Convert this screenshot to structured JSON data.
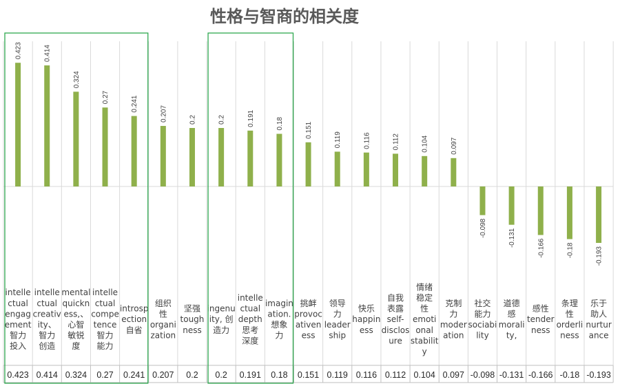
{
  "chart_data": {
    "type": "bar",
    "title": "性格与智商的相关度",
    "categories": [
      "intellectual engagement 智力投入",
      "intellectual creativity、智力创造",
      "mental quickness、心智敏锐度",
      "intellectual competence 智力能力",
      "introspection 自省",
      "组织性 organization",
      "坚强 toughness",
      "ingenuity, 创造力",
      "intellectual depth 思考深度",
      "imagination. 想象力",
      "挑衅 provocativeness",
      "领导力 leadership",
      "快乐 happiness",
      "自我表露 self-disclosure",
      "情绪稳定性 emotional stability",
      "克制力 moderation",
      "社交能力 sociability",
      "道德感 morality,",
      "感性 tenderness",
      "条理性 orderliness",
      "乐于助人 nurturance"
    ],
    "category_lines": [
      [
        "intelle",
        "ctual",
        "engag",
        "ement",
        "智力",
        "投入"
      ],
      [
        "intelle",
        "ctual",
        "creativ",
        "ity、",
        "智力",
        "创造"
      ],
      [
        "mental",
        "quickn",
        "ess,、",
        "心智",
        "敏锐",
        "度"
      ],
      [
        "intelle",
        "ctual",
        "compe",
        "tence",
        "智力",
        "能力"
      ],
      [
        "introsp",
        "ection",
        "自省"
      ],
      [
        "组织",
        "性",
        "organi",
        "zation"
      ],
      [
        "坚强",
        "tough",
        "ness"
      ],
      [
        "ingenu",
        "ity, 创",
        "造力"
      ],
      [
        "intelle",
        "ctual",
        "depth",
        "思考",
        "深度"
      ],
      [
        "imagin",
        "ation.",
        "想象",
        "力"
      ],
      [
        "挑衅",
        "provoc",
        "ativen",
        "ess"
      ],
      [
        "领导",
        "力",
        "leader",
        "ship"
      ],
      [
        "快乐",
        "happin",
        "ess"
      ],
      [
        "自我",
        "表露",
        "self-",
        "disclos",
        "ure"
      ],
      [
        "情绪",
        "稳定",
        "性",
        "emoti",
        "onal",
        "stabilit",
        "y"
      ],
      [
        "克制",
        "力",
        "moder",
        "ation"
      ],
      [
        "社交",
        "能力",
        "sociabi",
        "lity"
      ],
      [
        "道德",
        "感",
        "morali",
        "ty,"
      ],
      [
        "感性",
        "tender",
        "ness"
      ],
      [
        "条理",
        "性",
        "orderli",
        "ness"
      ],
      [
        "乐于",
        "助人",
        "nurtur",
        "ance"
      ]
    ],
    "values": [
      0.423,
      0.414,
      0.324,
      0.27,
      0.241,
      0.207,
      0.2,
      0.2,
      0.191,
      0.18,
      0.151,
      0.119,
      0.116,
      0.112,
      0.104,
      0.097,
      -0.098,
      -0.131,
      -0.166,
      -0.18,
      -0.193
    ],
    "value_labels": [
      "0.423",
      "0.414",
      "0.324",
      "0.27",
      "0.241",
      "0.207",
      "0.2",
      "0.2",
      "0.191",
      "0.18",
      "0.151",
      "0.119",
      "0.116",
      "0.112",
      "0.104",
      "0.097",
      "-0.098",
      "-0.131",
      "-0.166",
      "-0.18",
      "-0.193"
    ],
    "ylim": [
      -0.3,
      0.5
    ],
    "xlabel": "",
    "ylabel": "",
    "grid": true,
    "data_table": true,
    "legend": "none",
    "bar_color": "#8fb04b",
    "highlight_color": "#2ea84f",
    "highlight_groups": [
      [
        0,
        4
      ],
      [
        7,
        9
      ]
    ]
  }
}
